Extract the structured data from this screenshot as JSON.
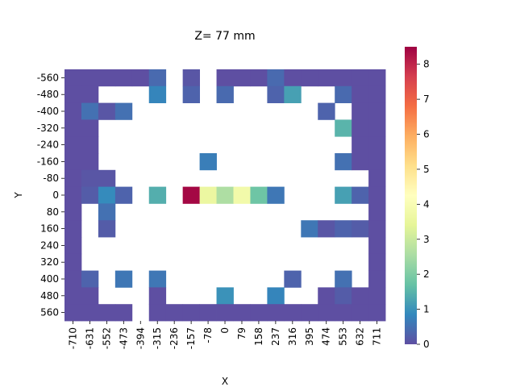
{
  "chart_data": {
    "type": "heatmap",
    "title": "Z= 77 mm",
    "xlabel": "X",
    "ylabel": "Y",
    "x_ticks": [
      "-710",
      "-631",
      "-552",
      "-473",
      "-394",
      "-315",
      "-236",
      "-157",
      "-78",
      "0",
      "79",
      "158",
      "237",
      "316",
      "395",
      "474",
      "553",
      "632",
      "711"
    ],
    "y_ticks": [
      "-560",
      "-480",
      "-400",
      "-320",
      "-240",
      "-160",
      "-80",
      "0",
      "80",
      "160",
      "240",
      "320",
      "400",
      "480",
      "560"
    ],
    "colorbar": {
      "min": 0,
      "max": 8.5,
      "ticks": [
        "0",
        "1",
        "2",
        "3",
        "4",
        "5",
        "6",
        "7",
        "8"
      ],
      "colormap": "Spectral_r"
    },
    "values": [
      [
        0,
        0,
        0,
        0,
        0,
        0.4,
        null,
        0.1,
        null,
        0,
        0,
        0,
        0.4,
        0,
        0,
        0,
        0,
        0,
        0
      ],
      [
        0,
        0,
        null,
        null,
        null,
        0.8,
        null,
        0.3,
        null,
        0.4,
        null,
        null,
        0.3,
        1.2,
        null,
        null,
        0.4,
        0,
        0
      ],
      [
        0,
        0.5,
        0.1,
        0.5,
        null,
        null,
        null,
        null,
        null,
        null,
        null,
        null,
        null,
        null,
        null,
        0.3,
        null,
        0,
        0
      ],
      [
        0,
        0,
        null,
        null,
        null,
        null,
        null,
        null,
        null,
        null,
        null,
        null,
        null,
        null,
        null,
        null,
        1.5,
        0,
        0
      ],
      [
        0,
        0,
        null,
        null,
        null,
        null,
        null,
        null,
        null,
        null,
        null,
        null,
        null,
        null,
        null,
        null,
        null,
        0,
        0
      ],
      [
        0,
        0,
        null,
        null,
        null,
        null,
        null,
        null,
        0.7,
        null,
        null,
        null,
        null,
        null,
        null,
        null,
        0.5,
        0,
        0
      ],
      [
        0,
        0.1,
        0.1,
        null,
        null,
        null,
        null,
        null,
        null,
        null,
        null,
        null,
        null,
        null,
        null,
        null,
        null,
        null,
        0
      ],
      [
        0,
        0.2,
        0.9,
        0.3,
        null,
        1.4,
        null,
        8.4,
        3.6,
        2.6,
        3.8,
        1.8,
        0.6,
        null,
        null,
        null,
        1.2,
        0.3,
        0
      ],
      [
        0,
        null,
        0.5,
        null,
        null,
        null,
        null,
        null,
        null,
        null,
        null,
        null,
        null,
        null,
        null,
        null,
        null,
        null,
        0
      ],
      [
        0,
        null,
        0.2,
        null,
        null,
        null,
        null,
        null,
        null,
        null,
        null,
        null,
        null,
        null,
        0.6,
        0.1,
        0.3,
        0.2,
        0
      ],
      [
        0,
        null,
        null,
        null,
        null,
        null,
        null,
        null,
        null,
        null,
        null,
        null,
        null,
        null,
        null,
        null,
        null,
        null,
        0
      ],
      [
        0,
        null,
        null,
        null,
        null,
        null,
        null,
        null,
        null,
        null,
        null,
        null,
        null,
        null,
        null,
        null,
        null,
        null,
        0
      ],
      [
        0,
        0.3,
        null,
        0.6,
        null,
        0.6,
        null,
        null,
        null,
        null,
        null,
        null,
        null,
        0.3,
        null,
        null,
        0.5,
        null,
        0
      ],
      [
        0,
        0,
        null,
        null,
        null,
        0,
        null,
        null,
        null,
        1.0,
        null,
        null,
        0.8,
        null,
        null,
        0,
        0.2,
        0,
        0
      ],
      [
        0,
        0,
        0,
        0,
        null,
        0,
        0,
        0,
        0,
        0,
        0,
        0,
        0,
        0,
        0,
        0,
        0,
        0,
        0
      ]
    ]
  }
}
